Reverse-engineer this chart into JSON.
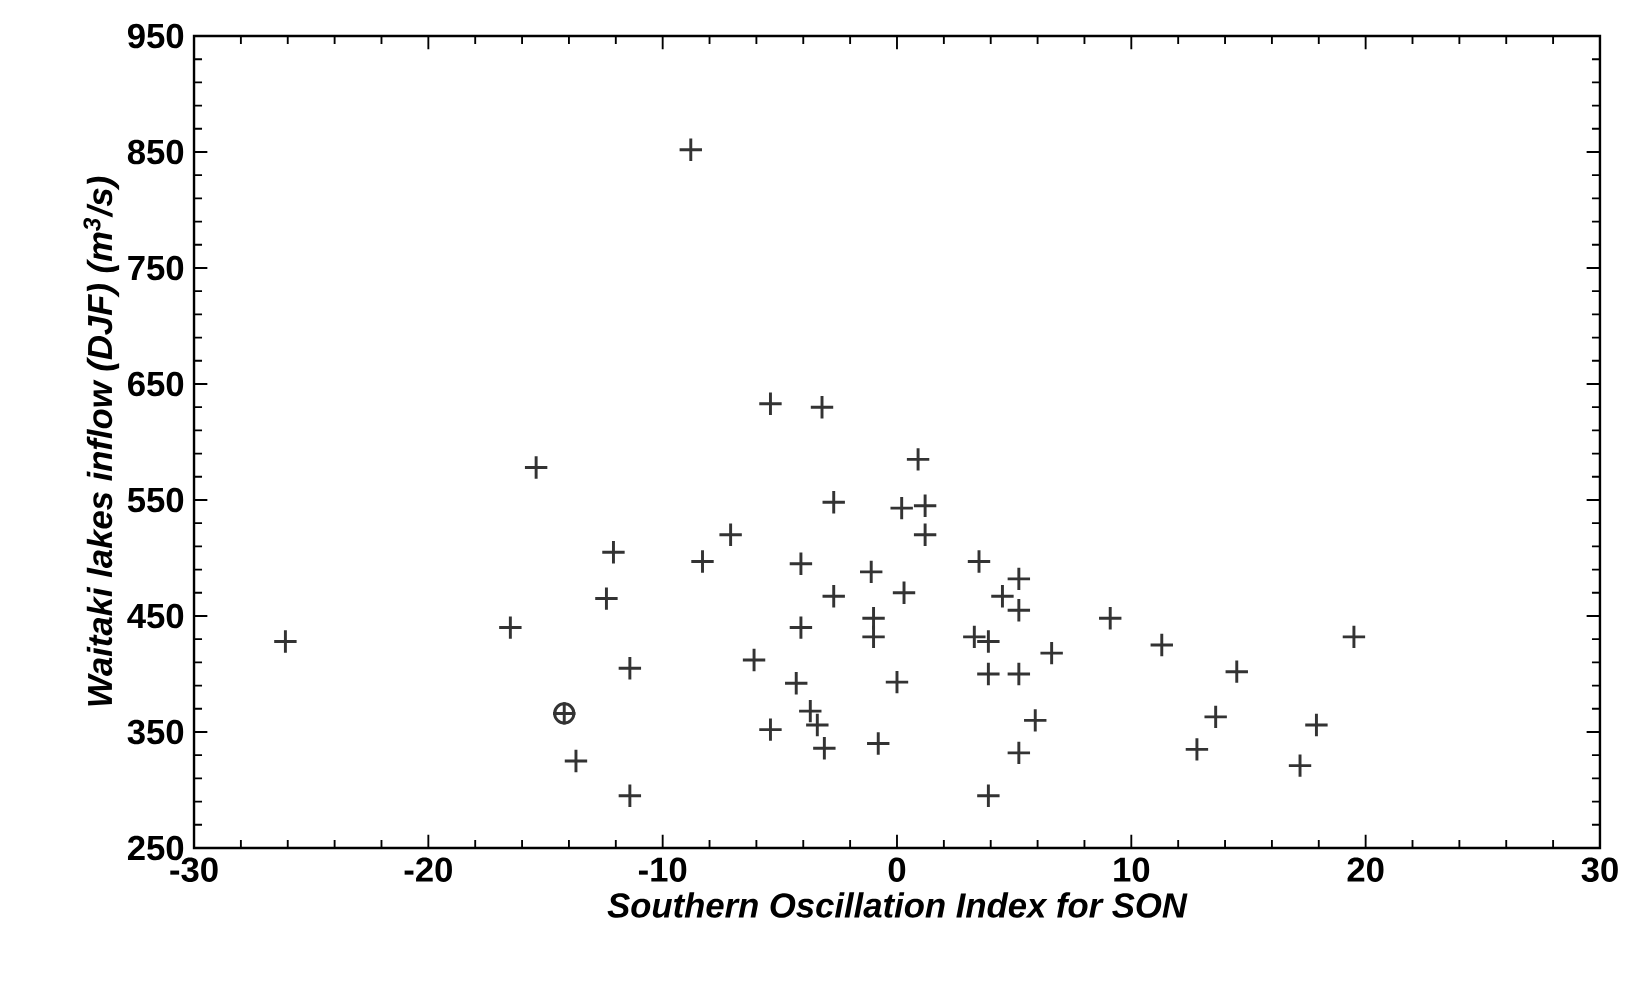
{
  "chart_data": {
    "type": "scatter",
    "xlabel": "Southern Oscillation Index for SON",
    "ylabel": "Waitaki lakes inflow (DJF) (m$^{3}$/s)",
    "xlim": [
      -30,
      30
    ],
    "xticks": [
      -30,
      -20,
      -10,
      0,
      10,
      20,
      30
    ],
    "ylim": [
      250,
      950
    ],
    "yticks": [
      250,
      350,
      450,
      550,
      650,
      750,
      850,
      950
    ],
    "grid": false,
    "series": [
      {
        "color": "#333333",
        "marker": "circle",
        "x": [
          -14.2
        ],
        "values": [
          366
        ]
      },
      {
        "color": "#333333",
        "marker": "cross",
        "x": [
          -8.8,
          -5.4,
          -3.2,
          -15.4,
          -2.7,
          -7.1,
          -12.1,
          -8.3,
          -4.1,
          -1.1,
          -12.4,
          -2.7,
          -16.5,
          -4.1,
          -1.0,
          -1.0,
          -26.1,
          -11.4,
          -6.1,
          -4.3,
          0.0,
          -3.7,
          -3.4,
          -5.4,
          -3.1,
          -0.8,
          -13.7,
          -11.4,
          0.9,
          0.2,
          1.2,
          1.2,
          0.3,
          3.5,
          5.2,
          4.5,
          5.2,
          3.3,
          3.9,
          3.9,
          5.2,
          6.6,
          5.9,
          5.2,
          3.9,
          9.1,
          11.3,
          14.5,
          13.6,
          12.8,
          17.9,
          17.2,
          19.5,
          -14.2
        ],
        "values": [
          852,
          633,
          630,
          578,
          548,
          520,
          505,
          497,
          495,
          488,
          465,
          467,
          440,
          440,
          448,
          432,
          428,
          405,
          412,
          392,
          393,
          368,
          356,
          352,
          336,
          340,
          325,
          295,
          585,
          543,
          545,
          520,
          470,
          497,
          482,
          467,
          455,
          432,
          428,
          400,
          400,
          418,
          360,
          332,
          295,
          448,
          425,
          402,
          363,
          335,
          356,
          321,
          432,
          366
        ]
      }
    ]
  }
}
